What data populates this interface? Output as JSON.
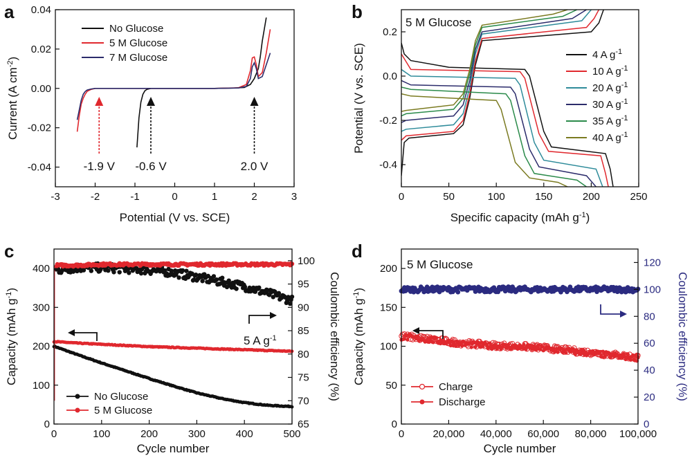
{
  "figure": {
    "panels": [
      {
        "letter": "a",
        "chart_data": {
          "type": "line",
          "title": "",
          "xlabel": "Potential (V vs. SCE)",
          "ylabel": "Current (A cm⁻²)",
          "xlim": [
            -3,
            3
          ],
          "ylim": [
            -0.05,
            0.04
          ],
          "xticks": [
            -3,
            -2,
            -1,
            0,
            1,
            2,
            3
          ],
          "yticks": [
            -0.04,
            -0.02,
            0.0,
            0.02,
            0.04
          ],
          "ytick_labels": [
            "-0.04",
            "-0.02",
            "0.00",
            "0.02",
            "0.04"
          ],
          "legend_position": "top-left",
          "series": [
            {
              "name": "No Glucose",
              "color": "#111111",
              "x": [
                -0.95,
                -0.9,
                -0.85,
                -0.8,
                -0.75,
                -0.7,
                -0.6,
                -0.5,
                0,
                0.5,
                1.0,
                1.5,
                1.75,
                1.9,
                2.0,
                2.1,
                2.15,
                2.2,
                2.25,
                2.3
              ],
              "y": [
                -0.03,
                -0.015,
                -0.007,
                -0.003,
                -0.0012,
                -0.0005,
                0.0,
                0.0,
                0.0,
                0.0,
                0.0,
                0.0002,
                0.0005,
                0.002,
                0.005,
                0.01,
                0.016,
                0.024,
                0.03,
                0.036
              ]
            },
            {
              "name": "5 M Glucose",
              "color": "#e0282e",
              "x": [
                -2.45,
                -2.4,
                -2.35,
                -2.3,
                -2.25,
                -2.2,
                -2.1,
                -2.0,
                -1.5,
                0,
                1.0,
                1.6,
                1.8,
                1.9,
                1.95,
                2.0,
                2.05,
                2.1,
                2.2,
                2.3,
                2.4
              ],
              "y": [
                -0.022,
                -0.014,
                -0.008,
                -0.005,
                -0.003,
                -0.0015,
                -0.0005,
                0.0,
                0.0,
                0.0,
                0.0,
                0.0003,
                0.002,
                0.009,
                0.0155,
                0.016,
                0.012,
                0.006,
                0.008,
                0.018,
                0.03
              ]
            },
            {
              "name": "7 M Glucose",
              "color": "#2b2b6b",
              "x": [
                -2.45,
                -2.4,
                -2.35,
                -2.3,
                -2.25,
                -2.2,
                -2.1,
                -2.0,
                -1.5,
                0,
                1.0,
                1.6,
                1.8,
                1.9,
                1.95,
                2.0,
                2.05,
                2.1,
                2.2,
                2.3,
                2.4
              ],
              "y": [
                -0.016,
                -0.011,
                -0.006,
                -0.003,
                -0.0016,
                -0.0008,
                -0.0003,
                0.0,
                0.0,
                0.0,
                0.0,
                0.0002,
                0.001,
                0.005,
                0.011,
                0.013,
                0.01,
                0.005,
                0.006,
                0.012,
                0.018
              ]
            }
          ],
          "annotations": [
            {
              "text": "-1.9 V",
              "x": -1.9,
              "color": "#e0282e"
            },
            {
              "text": "-0.6 V",
              "x": -0.6,
              "color": "#111111"
            },
            {
              "text": "2.0 V",
              "x": 2.0,
              "color": "#111111"
            }
          ]
        }
      },
      {
        "letter": "b",
        "chart_data": {
          "type": "line",
          "title": "5 M Glucose",
          "xlabel": "Specific capacity (mAh g⁻¹)",
          "ylabel": "Potential (V vs. SCE)",
          "xlim": [
            0,
            250
          ],
          "ylim": [
            -0.5,
            0.3
          ],
          "xticks": [
            0,
            50,
            100,
            150,
            200,
            250
          ],
          "yticks": [
            -0.4,
            -0.2,
            0.0,
            0.2
          ],
          "ytick_labels": [
            "-0.4",
            "-0.2",
            "0.0",
            "0.2"
          ],
          "legend_position": "right",
          "series": [
            {
              "name": "4 A g⁻¹",
              "color": "#111111",
              "charge": {
                "x": [
                  0,
                  3,
                  8,
                  55,
                  65,
                  72,
                  78,
                  85,
                  200,
                  208,
                  213
                ],
                "y": [
                  -0.45,
                  -0.3,
                  -0.28,
                  -0.26,
                  -0.22,
                  -0.1,
                  0.05,
                  0.16,
                  0.2,
                  0.24,
                  0.3
                ]
              },
              "discharge": {
                "x": [
                  0,
                  3,
                  10,
                  50,
                  130,
                  135,
                  150,
                  158,
                  215,
                  220,
                  223
                ],
                "y": [
                  0.15,
                  0.1,
                  0.07,
                  0.04,
                  0.03,
                  0.0,
                  -0.25,
                  -0.32,
                  -0.35,
                  -0.42,
                  -0.5
                ]
              }
            },
            {
              "name": "10 A g⁻¹",
              "color": "#e0282e",
              "charge": {
                "x": [
                  0,
                  5,
                  55,
                  65,
                  72,
                  78,
                  85,
                  195,
                  203,
                  208
                ],
                "y": [
                  -0.29,
                  -0.27,
                  -0.25,
                  -0.2,
                  -0.08,
                  0.07,
                  0.17,
                  0.22,
                  0.26,
                  0.3
                ]
              },
              "discharge": {
                "x": [
                  0,
                  10,
                  125,
                  130,
                  145,
                  155,
                  210,
                  215,
                  218
                ],
                "y": [
                  0.1,
                  0.03,
                  0.02,
                  -0.01,
                  -0.26,
                  -0.34,
                  -0.36,
                  -0.44,
                  -0.5
                ]
              }
            },
            {
              "name": "20 A g⁻¹",
              "color": "#2e8b9a",
              "charge": {
                "x": [
                  0,
                  5,
                  55,
                  65,
                  72,
                  78,
                  85,
                  190,
                  200
                ],
                "y": [
                  -0.25,
                  -0.24,
                  -0.22,
                  -0.17,
                  -0.05,
                  0.1,
                  0.19,
                  0.25,
                  0.3
                ]
              },
              "discharge": {
                "x": [
                  0,
                  10,
                  120,
                  125,
                  140,
                  150,
                  205,
                  212
                ],
                "y": [
                  0.03,
                  0.0,
                  -0.01,
                  -0.04,
                  -0.3,
                  -0.38,
                  -0.42,
                  -0.5
                ]
              }
            },
            {
              "name": "30 A g⁻¹",
              "color": "#2b2b6b",
              "charge": {
                "x": [
                  0,
                  5,
                  55,
                  65,
                  72,
                  78,
                  85,
                  180,
                  195
                ],
                "y": [
                  -0.21,
                  -0.2,
                  -0.18,
                  -0.13,
                  -0.02,
                  0.12,
                  0.2,
                  0.26,
                  0.3
                ]
              },
              "discharge": {
                "x": [
                  0,
                  10,
                  115,
                  120,
                  135,
                  145,
                  195,
                  205
                ],
                "y": [
                  -0.02,
                  -0.04,
                  -0.05,
                  -0.08,
                  -0.33,
                  -0.41,
                  -0.45,
                  -0.5
                ]
              }
            },
            {
              "name": "35 A g⁻¹",
              "color": "#2a8a4a",
              "charge": {
                "x": [
                  0,
                  5,
                  55,
                  65,
                  72,
                  78,
                  85,
                  170,
                  185
                ],
                "y": [
                  -0.18,
                  -0.17,
                  -0.15,
                  -0.1,
                  0.01,
                  0.14,
                  0.22,
                  0.27,
                  0.3
                ]
              },
              "discharge": {
                "x": [
                  0,
                  10,
                  110,
                  115,
                  130,
                  140,
                  185,
                  195
                ],
                "y": [
                  -0.05,
                  -0.06,
                  -0.08,
                  -0.11,
                  -0.36,
                  -0.44,
                  -0.47,
                  -0.5
                ]
              }
            },
            {
              "name": "40 A g⁻¹",
              "color": "#7a7a20",
              "charge": {
                "x": [
                  0,
                  5,
                  55,
                  65,
                  72,
                  78,
                  85,
                  160,
                  175
                ],
                "y": [
                  -0.16,
                  -0.155,
                  -0.13,
                  -0.08,
                  0.03,
                  0.16,
                  0.23,
                  0.28,
                  0.3
                ]
              },
              "discharge": {
                "x": [
                  0,
                  10,
                  100,
                  105,
                  120,
                  135,
                  165,
                  175
                ],
                "y": [
                  -0.08,
                  -0.09,
                  -0.11,
                  -0.15,
                  -0.39,
                  -0.46,
                  -0.48,
                  -0.5
                ]
              }
            }
          ]
        }
      },
      {
        "letter": "c",
        "chart_data": {
          "type": "scatter",
          "title": "",
          "xlabel": "Cycle number",
          "ylabel": "Capacity (mAh g⁻¹)",
          "y2label": "Coulombic efficiency (%)",
          "xlim": [
            0,
            500
          ],
          "ylim": [
            0,
            450
          ],
          "y2lim": [
            65,
            102.5
          ],
          "xticks": [
            0,
            100,
            200,
            300,
            400,
            500
          ],
          "yticks": [
            0,
            100,
            200,
            300,
            400
          ],
          "y2ticks": [
            65,
            70,
            75,
            80,
            85,
            90,
            95,
            100
          ],
          "legend_position": "bottom-left",
          "series": [
            {
              "name": "No Glucose",
              "color": "#111111",
              "axis": "left",
              "metric": "capacity",
              "x": [
                0,
                50,
                100,
                150,
                200,
                250,
                300,
                350,
                400,
                450,
                500
              ],
              "y": [
                200,
                178,
                157,
                137,
                117,
                98,
                80,
                66,
                55,
                48,
                45
              ]
            },
            {
              "name": "5 M Glucose",
              "color": "#e0282e",
              "axis": "left",
              "metric": "capacity",
              "x": [
                0,
                50,
                100,
                150,
                200,
                250,
                300,
                350,
                400,
                450,
                500
              ],
              "y": [
                212,
                208,
                205,
                202,
                199,
                197,
                195,
                193,
                191,
                189,
                187
              ]
            },
            {
              "name": "No Glucose CE",
              "color": "#111111",
              "axis": "right",
              "metric": "coulombic_efficiency",
              "x": [
                5,
                50,
                100,
                150,
                200,
                250,
                300,
                350,
                400,
                450,
                500
              ],
              "y": [
                98,
                98.5,
                98.5,
                98.3,
                98,
                97.5,
                96.5,
                95.5,
                94.5,
                93,
                91.5
              ]
            },
            {
              "name": "5 M Glucose CE",
              "color": "#e0282e",
              "axis": "right",
              "metric": "coulombic_efficiency",
              "x": [
                5,
                50,
                100,
                150,
                200,
                250,
                300,
                350,
                400,
                450,
                500
              ],
              "y": [
                99,
                99,
                99.2,
                99.2,
                99.2,
                99.2,
                99.2,
                99.2,
                99.2,
                99.2,
                99.2
              ]
            }
          ],
          "annotations": [
            {
              "text": "5 A g⁻¹"
            }
          ]
        }
      },
      {
        "letter": "d",
        "chart_data": {
          "type": "scatter",
          "title": "5 M Glucose",
          "xlabel": "Cycle number",
          "ylabel": "Capacity (mAh g⁻¹)",
          "y2label": "Coulombic efficiency (%)",
          "xlim": [
            0,
            100000
          ],
          "ylim": [
            0,
            225
          ],
          "y2lim": [
            0,
            130
          ],
          "xticks": [
            0,
            20000,
            40000,
            60000,
            80000,
            100000
          ],
          "xtick_labels": [
            "0",
            "20,000",
            "40,000",
            "60,000",
            "80,000",
            "100,000"
          ],
          "yticks": [
            0,
            50,
            100,
            150,
            200
          ],
          "y2ticks": [
            0,
            20,
            40,
            60,
            80,
            100,
            120
          ],
          "y2color": "#2b2b80",
          "legend_position": "bottom-left",
          "series": [
            {
              "name": "Charge",
              "color": "#e0282e",
              "marker": "open-circle",
              "axis": "left",
              "metric": "capacity",
              "x": [
                0,
                10000,
                20000,
                30000,
                40000,
                50000,
                60000,
                70000,
                80000,
                90000,
                100000
              ],
              "y": [
                113,
                110,
                106,
                103,
                101,
                100,
                98,
                95,
                92,
                89,
                86
              ]
            },
            {
              "name": "Discharge",
              "color": "#e0282e",
              "marker": "filled-circle",
              "axis": "left",
              "metric": "capacity",
              "x": [
                0,
                10000,
                20000,
                30000,
                40000,
                50000,
                60000,
                70000,
                80000,
                90000,
                100000
              ],
              "y": [
                112,
                109,
                105,
                102,
                100,
                99,
                97,
                94,
                91,
                88,
                85
              ]
            },
            {
              "name": "Coulombic efficiency",
              "color": "#2b2b80",
              "axis": "right",
              "metric": "coulombic_efficiency",
              "x": [
                0,
                20000,
                40000,
                60000,
                80000,
                100000
              ],
              "y": [
                100,
                100,
                100,
                100,
                100,
                100
              ]
            }
          ]
        }
      }
    ]
  }
}
